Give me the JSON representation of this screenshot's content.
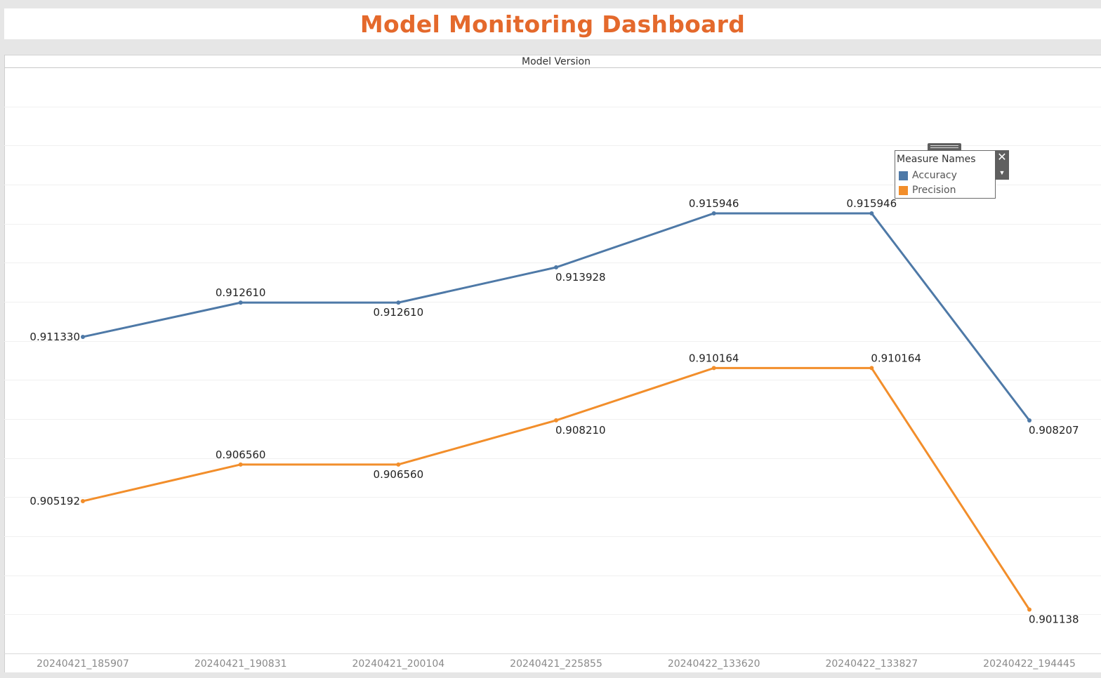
{
  "dashboard": {
    "title": "Model Monitoring Dashboard"
  },
  "chart_data": {
    "type": "line",
    "title": "",
    "header": "Model Version",
    "xlabel": "",
    "ylabel": "",
    "categories": [
      "20240421_185907",
      "20240421_190831",
      "20240421_200104",
      "20240421_225855",
      "20240422_133620",
      "20240422_133827",
      "20240422_194445"
    ],
    "ylim": [
      0.8995,
      0.9214
    ],
    "grid": true,
    "legend_position": "top-right",
    "series": [
      {
        "name": "Accuracy",
        "color": "#4e79a7",
        "values": [
          0.91133,
          0.91261,
          0.91261,
          0.913928,
          0.915946,
          0.915946,
          0.908207
        ],
        "labels": [
          "0.911330",
          "0.912610",
          "0.912610",
          "0.913928",
          "0.915946",
          "0.915946",
          "0.908207"
        ]
      },
      {
        "name": "Precision",
        "color": "#f28e2b",
        "values": [
          0.905192,
          0.90656,
          0.90656,
          0.90821,
          0.910164,
          0.910164,
          0.901138
        ],
        "labels": [
          "0.905192",
          "0.906560",
          "0.906560",
          "0.908210",
          "0.910164",
          "0.910164",
          "0.901138"
        ]
      }
    ]
  },
  "legend": {
    "title": "Measure Names",
    "items": [
      {
        "label": "Accuracy",
        "color": "#4e79a7"
      },
      {
        "label": "Precision",
        "color": "#f28e2b"
      }
    ],
    "close_icon": "close-icon",
    "menu_icon": "dropdown-arrow-icon"
  }
}
